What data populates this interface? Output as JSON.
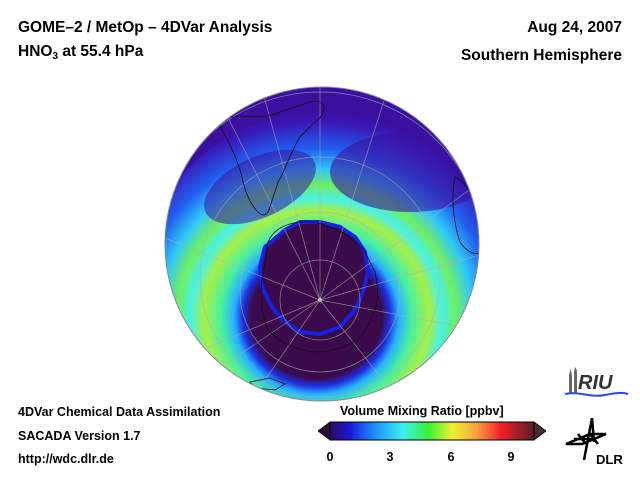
{
  "header": {
    "title_line1": "GOME–2 / MetOp – 4DVar Analysis",
    "species_main": "HNO",
    "species_sub": "3",
    "species_rest": " at 55.4 hPa",
    "date": "Aug 24, 2007",
    "region": "Southern Hemisphere"
  },
  "footer": {
    "line1": "4DVar Chemical Data Assimilation",
    "line2": "SACADA Version 1.7",
    "line3": "http://wdc.dlr.de"
  },
  "colorbar": {
    "title": "Volume Mixing Ratio [ppbv]",
    "ticks": [
      "0",
      "3",
      "6",
      "9"
    ],
    "range": [
      0,
      10
    ],
    "colors": [
      "#2a0a5e",
      "#1a1ad8",
      "#1e90ff",
      "#3ff0f0",
      "#37f037",
      "#f0f032",
      "#f5a040",
      "#f01e28",
      "#5a1e28"
    ]
  },
  "map": {
    "projection": "orthographic, south polar view",
    "palette": {
      "background_low": "#3a10a0",
      "vortex_core": "#3a0a4a",
      "collar_blue": "#1e50ff",
      "ring_cyan": "#40e8f0",
      "ring_green": "#50f050",
      "ring_yellow": "#d8f040"
    }
  },
  "logos": {
    "riu": "RIU",
    "dlr": "DLR"
  }
}
